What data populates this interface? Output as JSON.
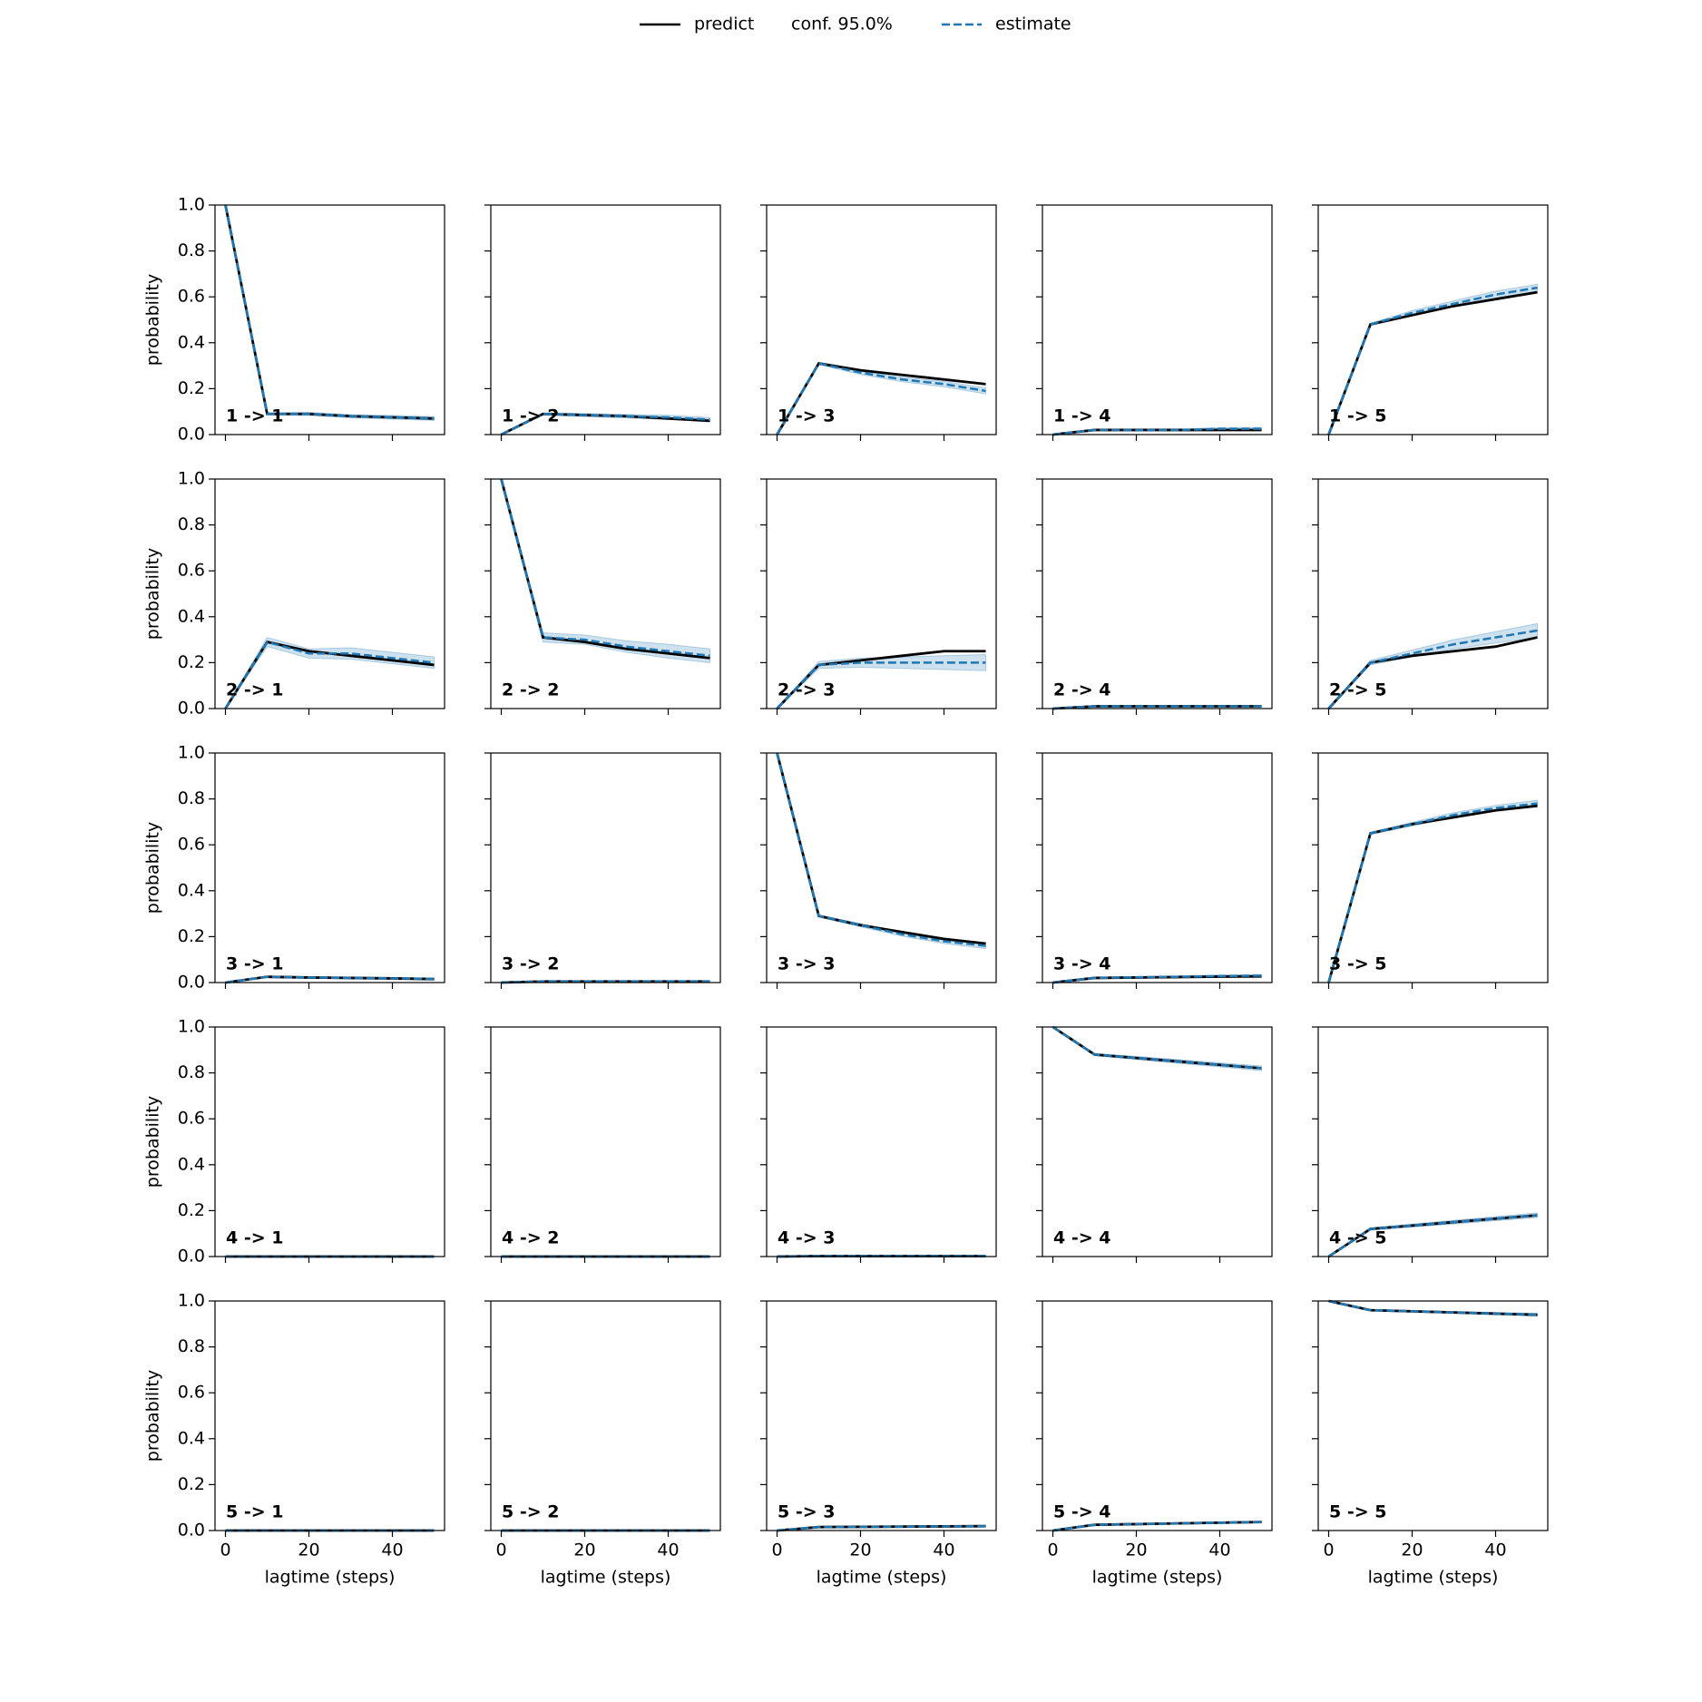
{
  "chart_data": {
    "type": "line",
    "x": [
      0,
      10,
      20,
      30,
      40,
      50
    ],
    "xlim": [
      -2.5,
      52.5
    ],
    "ylim": [
      0,
      1
    ],
    "xticks": [
      0,
      20,
      40
    ],
    "yticks": [
      {
        "value": 0,
        "label": "0.0"
      },
      0.2,
      0.4,
      0.6,
      0.8,
      {
        "value": 1,
        "label": "1.0"
      }
    ],
    "xlabel": "lagtime (steps)",
    "ylabel": "probability",
    "series": [
      {
        "name": "predict",
        "color": "#000000"
      },
      {
        "name": "conf. 95.0%",
        "color": "#1f77b4"
      },
      {
        "name": "estimate",
        "color": "#1f77b4"
      }
    ],
    "panels": [
      {
        "title": "1 -> 1",
        "predict": [
          1,
          0.09,
          0.09,
          0.08,
          0.075,
          0.07
        ],
        "estimate": [
          1,
          0.09,
          0.09,
          0.08,
          0.075,
          0.07
        ],
        "conf_lower": [
          1,
          0.085,
          0.083,
          0.073,
          0.067,
          0.062
        ],
        "conf_upper": [
          1,
          0.095,
          0.097,
          0.087,
          0.083,
          0.078
        ]
      },
      {
        "title": "1 -> 2",
        "predict": [
          0,
          0.09,
          0.085,
          0.08,
          0.07,
          0.06
        ],
        "estimate": [
          0,
          0.09,
          0.085,
          0.08,
          0.075,
          0.065
        ],
        "conf_lower": [
          0,
          0.085,
          0.078,
          0.072,
          0.066,
          0.056
        ],
        "conf_upper": [
          0,
          0.095,
          0.092,
          0.088,
          0.084,
          0.074
        ]
      },
      {
        "title": "1 -> 3",
        "predict": [
          0,
          0.31,
          0.28,
          0.26,
          0.24,
          0.22
        ],
        "estimate": [
          0,
          0.31,
          0.27,
          0.24,
          0.22,
          0.19
        ],
        "conf_lower": [
          0,
          0.305,
          0.262,
          0.23,
          0.208,
          0.177
        ],
        "conf_upper": [
          0,
          0.315,
          0.278,
          0.25,
          0.232,
          0.203
        ]
      },
      {
        "title": "1 -> 4",
        "predict": [
          0,
          0.02,
          0.02,
          0.02,
          0.02,
          0.02
        ],
        "estimate": [
          0,
          0.02,
          0.02,
          0.02,
          0.025,
          0.025
        ],
        "conf_lower": [
          0,
          0.017,
          0.016,
          0.016,
          0.02,
          0.019
        ],
        "conf_upper": [
          0,
          0.023,
          0.024,
          0.024,
          0.03,
          0.031
        ]
      },
      {
        "title": "1 -> 5",
        "predict": [
          0,
          0.48,
          0.52,
          0.56,
          0.59,
          0.62
        ],
        "estimate": [
          0,
          0.48,
          0.53,
          0.57,
          0.61,
          0.64
        ],
        "conf_lower": [
          0,
          0.475,
          0.52,
          0.557,
          0.595,
          0.625
        ],
        "conf_upper": [
          0,
          0.485,
          0.54,
          0.583,
          0.625,
          0.655
        ]
      },
      {
        "title": "2 -> 1",
        "predict": [
          0,
          0.29,
          0.25,
          0.23,
          0.21,
          0.19
        ],
        "estimate": [
          0,
          0.29,
          0.24,
          0.24,
          0.22,
          0.2
        ],
        "conf_lower": [
          0,
          0.27,
          0.22,
          0.215,
          0.195,
          0.175
        ],
        "conf_upper": [
          0,
          0.31,
          0.26,
          0.265,
          0.245,
          0.225
        ]
      },
      {
        "title": "2 -> 2",
        "predict": [
          1,
          0.31,
          0.29,
          0.26,
          0.24,
          0.22
        ],
        "estimate": [
          1,
          0.31,
          0.3,
          0.27,
          0.25,
          0.23
        ],
        "conf_lower": [
          1,
          0.29,
          0.28,
          0.245,
          0.22,
          0.2
        ],
        "conf_upper": [
          1,
          0.33,
          0.32,
          0.295,
          0.28,
          0.26
        ]
      },
      {
        "title": "2 -> 3",
        "predict": [
          0,
          0.19,
          0.21,
          0.23,
          0.25,
          0.25
        ],
        "estimate": [
          0,
          0.19,
          0.2,
          0.2,
          0.2,
          0.2
        ],
        "conf_lower": [
          0,
          0.175,
          0.18,
          0.175,
          0.17,
          0.165
        ],
        "conf_upper": [
          0,
          0.205,
          0.22,
          0.225,
          0.23,
          0.235
        ]
      },
      {
        "title": "2 -> 4",
        "predict": [
          0,
          0.01,
          0.01,
          0.01,
          0.01,
          0.01
        ],
        "estimate": [
          0,
          0.01,
          0.01,
          0.01,
          0.01,
          0.01
        ],
        "conf_lower": [
          0,
          0.007,
          0.007,
          0.006,
          0.006,
          0.006
        ],
        "conf_upper": [
          0,
          0.013,
          0.013,
          0.014,
          0.014,
          0.014
        ]
      },
      {
        "title": "2 -> 5",
        "predict": [
          0,
          0.2,
          0.23,
          0.25,
          0.27,
          0.31
        ],
        "estimate": [
          0,
          0.2,
          0.24,
          0.28,
          0.31,
          0.34
        ],
        "conf_lower": [
          0,
          0.19,
          0.225,
          0.26,
          0.285,
          0.31
        ],
        "conf_upper": [
          0,
          0.21,
          0.255,
          0.3,
          0.335,
          0.37
        ]
      },
      {
        "title": "3 -> 1",
        "predict": [
          0,
          0.025,
          0.022,
          0.02,
          0.018,
          0.015
        ],
        "estimate": [
          0,
          0.025,
          0.022,
          0.02,
          0.018,
          0.016
        ],
        "conf_lower": [
          0,
          0.022,
          0.019,
          0.016,
          0.014,
          0.012
        ],
        "conf_upper": [
          0,
          0.028,
          0.025,
          0.024,
          0.022,
          0.02
        ]
      },
      {
        "title": "3 -> 2",
        "predict": [
          0,
          0.005,
          0.005,
          0.005,
          0.005,
          0.005
        ],
        "estimate": [
          0,
          0.005,
          0.005,
          0.005,
          0.005,
          0.005
        ],
        "conf_lower": [
          0,
          0.003,
          0.003,
          0.003,
          0.003,
          0.003
        ],
        "conf_upper": [
          0,
          0.007,
          0.007,
          0.007,
          0.007,
          0.007
        ]
      },
      {
        "title": "3 -> 3",
        "predict": [
          1,
          0.29,
          0.25,
          0.22,
          0.19,
          0.17
        ],
        "estimate": [
          1,
          0.29,
          0.25,
          0.21,
          0.18,
          0.16
        ],
        "conf_lower": [
          1,
          0.285,
          0.243,
          0.202,
          0.17,
          0.148
        ],
        "conf_upper": [
          1,
          0.295,
          0.257,
          0.218,
          0.19,
          0.172
        ]
      },
      {
        "title": "3 -> 4",
        "predict": [
          0,
          0.02,
          0.022,
          0.024,
          0.026,
          0.027
        ],
        "estimate": [
          0,
          0.02,
          0.023,
          0.025,
          0.028,
          0.03
        ],
        "conf_lower": [
          0,
          0.018,
          0.02,
          0.021,
          0.023,
          0.025
        ],
        "conf_upper": [
          0,
          0.022,
          0.026,
          0.029,
          0.033,
          0.035
        ]
      },
      {
        "title": "3 -> 5",
        "predict": [
          0,
          0.65,
          0.69,
          0.72,
          0.75,
          0.77
        ],
        "estimate": [
          0,
          0.65,
          0.69,
          0.73,
          0.76,
          0.78
        ],
        "conf_lower": [
          0,
          0.645,
          0.682,
          0.72,
          0.748,
          0.766
        ],
        "conf_upper": [
          0,
          0.655,
          0.698,
          0.74,
          0.772,
          0.794
        ]
      },
      {
        "title": "4 -> 1",
        "predict": [
          0,
          0,
          0,
          0,
          0,
          0
        ],
        "estimate": [
          0,
          0,
          0,
          0,
          0,
          0
        ],
        "conf_lower": [
          0,
          0,
          0,
          0,
          0,
          0
        ],
        "conf_upper": [
          0,
          0.001,
          0.001,
          0.001,
          0.001,
          0.001
        ]
      },
      {
        "title": "4 -> 2",
        "predict": [
          0,
          0,
          0,
          0,
          0,
          0
        ],
        "estimate": [
          0,
          0,
          0,
          0,
          0,
          0
        ],
        "conf_lower": [
          0,
          0,
          0,
          0,
          0,
          0
        ],
        "conf_upper": [
          0,
          0.001,
          0.001,
          0.001,
          0.001,
          0.001
        ]
      },
      {
        "title": "4 -> 3",
        "predict": [
          0,
          0.002,
          0.002,
          0.002,
          0.002,
          0.002
        ],
        "estimate": [
          0,
          0.002,
          0.002,
          0.002,
          0.002,
          0.002
        ],
        "conf_lower": [
          0,
          0.001,
          0.001,
          0.001,
          0.001,
          0.001
        ],
        "conf_upper": [
          0,
          0.003,
          0.003,
          0.003,
          0.003,
          0.003
        ]
      },
      {
        "title": "4 -> 4",
        "predict": [
          1,
          0.88,
          0.865,
          0.85,
          0.835,
          0.82
        ],
        "estimate": [
          1,
          0.88,
          0.865,
          0.85,
          0.835,
          0.82
        ],
        "conf_lower": [
          1,
          0.875,
          0.858,
          0.842,
          0.826,
          0.81
        ],
        "conf_upper": [
          1,
          0.885,
          0.872,
          0.858,
          0.844,
          0.83
        ]
      },
      {
        "title": "4 -> 5",
        "predict": [
          0,
          0.12,
          0.135,
          0.15,
          0.165,
          0.18
        ],
        "estimate": [
          0,
          0.12,
          0.135,
          0.15,
          0.165,
          0.18
        ],
        "conf_lower": [
          0,
          0.115,
          0.128,
          0.142,
          0.156,
          0.17
        ],
        "conf_upper": [
          0,
          0.125,
          0.142,
          0.158,
          0.174,
          0.19
        ]
      },
      {
        "title": "5 -> 1",
        "predict": [
          0,
          0,
          0,
          0,
          0,
          0
        ],
        "estimate": [
          0,
          0,
          0,
          0,
          0,
          0
        ],
        "conf_lower": [
          0,
          0,
          0,
          0,
          0,
          0
        ],
        "conf_upper": [
          0,
          0.001,
          0.001,
          0.001,
          0.001,
          0.001
        ]
      },
      {
        "title": "5 -> 2",
        "predict": [
          0,
          0,
          0,
          0,
          0,
          0
        ],
        "estimate": [
          0,
          0,
          0,
          0,
          0,
          0
        ],
        "conf_lower": [
          0,
          0,
          0,
          0,
          0,
          0
        ],
        "conf_upper": [
          0,
          0.001,
          0.001,
          0.001,
          0.001,
          0.001
        ]
      },
      {
        "title": "5 -> 3",
        "predict": [
          0,
          0.015,
          0.016,
          0.017,
          0.018,
          0.019
        ],
        "estimate": [
          0,
          0.015,
          0.016,
          0.017,
          0.018,
          0.019
        ],
        "conf_lower": [
          0,
          0.013,
          0.014,
          0.014,
          0.015,
          0.015
        ],
        "conf_upper": [
          0,
          0.017,
          0.018,
          0.02,
          0.021,
          0.023
        ]
      },
      {
        "title": "5 -> 4",
        "predict": [
          0,
          0.025,
          0.028,
          0.031,
          0.034,
          0.037
        ],
        "estimate": [
          0,
          0.025,
          0.028,
          0.031,
          0.034,
          0.037
        ],
        "conf_lower": [
          0,
          0.023,
          0.025,
          0.028,
          0.03,
          0.033
        ],
        "conf_upper": [
          0,
          0.027,
          0.031,
          0.034,
          0.038,
          0.041
        ]
      },
      {
        "title": "5 -> 5",
        "predict": [
          1,
          0.96,
          0.955,
          0.95,
          0.945,
          0.94
        ],
        "estimate": [
          1,
          0.96,
          0.955,
          0.95,
          0.945,
          0.94
        ],
        "conf_lower": [
          1,
          0.957,
          0.951,
          0.946,
          0.94,
          0.934
        ],
        "conf_upper": [
          1,
          0.963,
          0.959,
          0.954,
          0.95,
          0.946
        ]
      }
    ]
  }
}
